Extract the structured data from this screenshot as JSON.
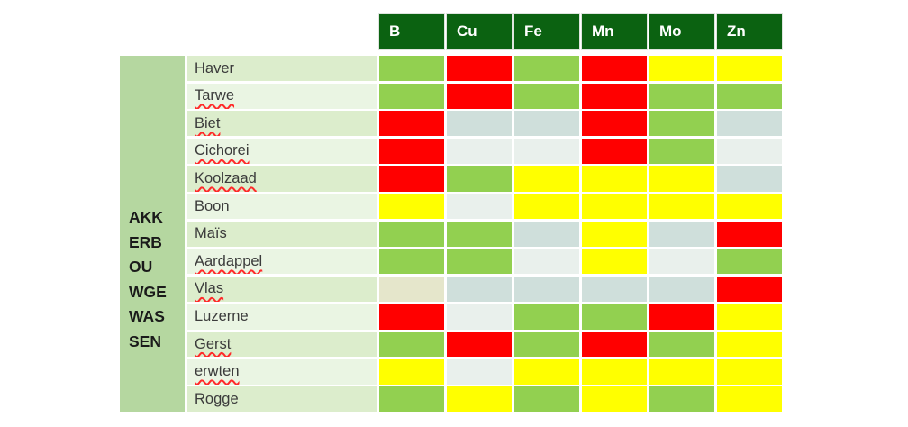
{
  "table": {
    "side_group_label_lines": [
      "AKK",
      "ERB",
      "OU",
      "WGE",
      "WAS",
      "SEN"
    ],
    "columns": [
      "B",
      "Cu",
      "Fe",
      "Mn",
      "Mo",
      "Zn"
    ],
    "rows": [
      {
        "label": "Haver",
        "misspelled": false,
        "cells": [
          "green",
          "red",
          "green",
          "red",
          "yellow",
          "yellow"
        ]
      },
      {
        "label": "Tarwe",
        "misspelled": true,
        "cells": [
          "green",
          "red",
          "green",
          "red",
          "green",
          "green"
        ]
      },
      {
        "label": "Biet",
        "misspelled": true,
        "cells": [
          "red",
          "gray",
          "gray",
          "red",
          "green",
          "gray"
        ]
      },
      {
        "label": "Cichorei",
        "misspelled": true,
        "cells": [
          "red",
          "lightgray",
          "lightgray",
          "red",
          "green",
          "lightgray"
        ]
      },
      {
        "label": "Koolzaad",
        "misspelled": true,
        "cells": [
          "red",
          "green",
          "yellow",
          "yellow",
          "yellow",
          "gray"
        ]
      },
      {
        "label": "Boon",
        "misspelled": false,
        "cells": [
          "yellow",
          "lightgray",
          "yellow",
          "yellow",
          "yellow",
          "yellow"
        ]
      },
      {
        "label": "Maïs",
        "misspelled": false,
        "cells": [
          "green",
          "green",
          "gray",
          "yellow",
          "gray",
          "red"
        ]
      },
      {
        "label": "Aardappel",
        "misspelled": true,
        "cells": [
          "green",
          "green",
          "lightgray",
          "yellow",
          "lightgray",
          "green"
        ]
      },
      {
        "label": "Vlas",
        "misspelled": true,
        "cells": [
          "beige",
          "gray",
          "gray",
          "gray",
          "gray",
          "red"
        ]
      },
      {
        "label": "Luzerne",
        "misspelled": false,
        "cells": [
          "red",
          "lightgray",
          "green",
          "green",
          "red",
          "yellow"
        ]
      },
      {
        "label": "Gerst",
        "misspelled": true,
        "cells": [
          "green",
          "red",
          "green",
          "red",
          "green",
          "yellow"
        ]
      },
      {
        "label": "erwten",
        "misspelled": true,
        "cells": [
          "yellow",
          "lightgray",
          "yellow",
          "yellow",
          "yellow",
          "yellow"
        ]
      },
      {
        "label": "Rogge",
        "misspelled": false,
        "cells": [
          "green",
          "yellow",
          "green",
          "yellow",
          "green",
          "yellow"
        ]
      }
    ]
  },
  "chart_data": {
    "type": "heatmap",
    "title": "",
    "x_labels": [
      "B",
      "Cu",
      "Fe",
      "Mn",
      "Mo",
      "Zn"
    ],
    "y_labels": [
      "Haver",
      "Tarwe",
      "Biet",
      "Cichorei",
      "Koolzaad",
      "Boon",
      "Maïs",
      "Aardappel",
      "Vlas",
      "Luzerne",
      "Gerst",
      "erwten",
      "Rogge"
    ],
    "y_group_label_lines": [
      "AKK",
      "ERB",
      "OU",
      "WGE",
      "WAS",
      "SEN"
    ],
    "values": [
      [
        "green",
        "red",
        "green",
        "red",
        "yellow",
        "yellow"
      ],
      [
        "green",
        "red",
        "green",
        "red",
        "green",
        "green"
      ],
      [
        "red",
        "gray",
        "gray",
        "red",
        "green",
        "gray"
      ],
      [
        "red",
        "lightgray",
        "lightgray",
        "red",
        "green",
        "lightgray"
      ],
      [
        "red",
        "green",
        "yellow",
        "yellow",
        "yellow",
        "gray"
      ],
      [
        "yellow",
        "lightgray",
        "yellow",
        "yellow",
        "yellow",
        "yellow"
      ],
      [
        "green",
        "green",
        "gray",
        "yellow",
        "gray",
        "red"
      ],
      [
        "green",
        "green",
        "lightgray",
        "yellow",
        "lightgray",
        "green"
      ],
      [
        "beige",
        "gray",
        "gray",
        "gray",
        "gray",
        "red"
      ],
      [
        "red",
        "lightgray",
        "green",
        "green",
        "red",
        "yellow"
      ],
      [
        "green",
        "red",
        "green",
        "red",
        "green",
        "yellow"
      ],
      [
        "yellow",
        "lightgray",
        "yellow",
        "yellow",
        "yellow",
        "yellow"
      ],
      [
        "green",
        "yellow",
        "green",
        "yellow",
        "green",
        "yellow"
      ]
    ],
    "legend_position": "none",
    "grid": "white 2-3px gaps between cells"
  },
  "colors": {
    "cell": {
      "green": "#92d050",
      "red": "#ff0000",
      "yellow": "#ffff00",
      "gray": "#cfdfdb",
      "lightgray": "#e9f0ec",
      "beige": "#e5e6cb"
    },
    "header_bg": "#0b6211",
    "header_text": "#ffffff",
    "side_label_bg": "#b5d7a0",
    "row_label_bg_odd": "#dcedcc",
    "row_label_bg_even": "#eaf5e3",
    "squiggle": "#ff2a2a",
    "page_bg": "#ffffff"
  }
}
